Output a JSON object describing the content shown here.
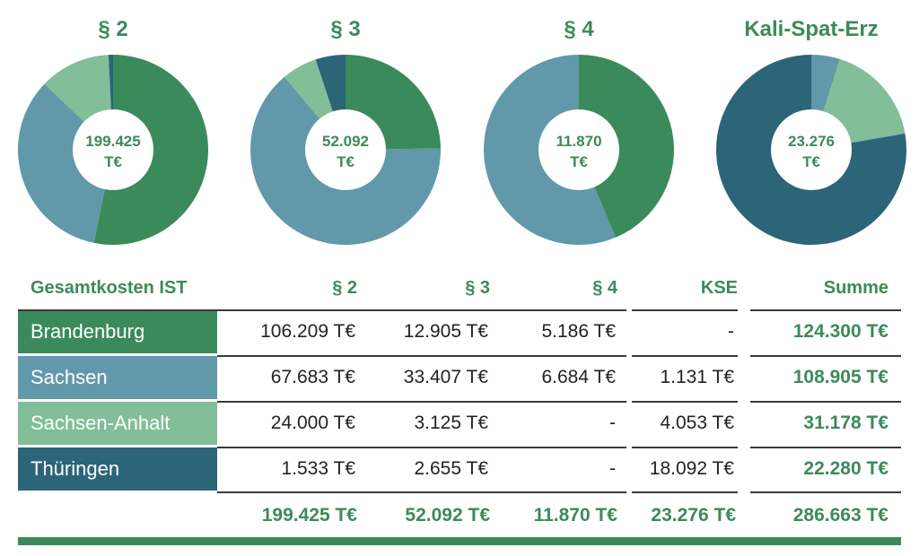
{
  "chart_data": [
    {
      "type": "pie",
      "title": "§ 2",
      "center_label": [
        "199.425",
        "T€"
      ],
      "series": [
        {
          "name": "Brandenburg",
          "value": 106209,
          "color": "#3b8a5c"
        },
        {
          "name": "Sachsen",
          "value": 67683,
          "color": "#6199aa"
        },
        {
          "name": "Sachsen-Anhalt",
          "value": 24000,
          "color": "#82be98"
        },
        {
          "name": "Thüringen",
          "value": 1533,
          "color": "#2c6478"
        }
      ]
    },
    {
      "type": "pie",
      "title": "§ 3",
      "center_label": [
        "52.092",
        "T€"
      ],
      "series": [
        {
          "name": "Brandenburg",
          "value": 12905,
          "color": "#3b8a5c"
        },
        {
          "name": "Sachsen",
          "value": 33407,
          "color": "#6199aa"
        },
        {
          "name": "Sachsen-Anhalt",
          "value": 3125,
          "color": "#82be98"
        },
        {
          "name": "Thüringen",
          "value": 2655,
          "color": "#2c6478"
        }
      ]
    },
    {
      "type": "pie",
      "title": "§ 4",
      "center_label": [
        "11.870",
        "T€"
      ],
      "series": [
        {
          "name": "Brandenburg",
          "value": 5186,
          "color": "#3b8a5c"
        },
        {
          "name": "Sachsen",
          "value": 6684,
          "color": "#6199aa"
        }
      ]
    },
    {
      "type": "pie",
      "title": "Kali-Spat-Erz",
      "center_label": [
        "23.276",
        "T€"
      ],
      "series": [
        {
          "name": "Sachsen",
          "value": 1131,
          "color": "#6199aa"
        },
        {
          "name": "Sachsen-Anhalt",
          "value": 4053,
          "color": "#82be98"
        },
        {
          "name": "Thüringen",
          "value": 18092,
          "color": "#2c6478"
        }
      ]
    }
  ],
  "table": {
    "corner": "Gesamtkosten IST",
    "headers": [
      "§ 2",
      "§ 3",
      "§ 4",
      "KSE",
      "Summe"
    ],
    "rows": [
      {
        "label": "Brandenburg",
        "color": "#3b8a5c",
        "cells": [
          "106.209 T€",
          "12.905 T€",
          "5.186 T€",
          "-"
        ],
        "sum": "124.300 T€"
      },
      {
        "label": "Sachsen",
        "color": "#6199aa",
        "cells": [
          "67.683 T€",
          "33.407 T€",
          "6.684 T€",
          "1.131 T€"
        ],
        "sum": "108.905 T€"
      },
      {
        "label": "Sachsen-Anhalt",
        "color": "#82be98",
        "cells": [
          "24.000 T€",
          "3.125 T€",
          "-",
          "4.053 T€"
        ],
        "sum": "31.178 T€"
      },
      {
        "label": "Thüringen",
        "color": "#2c6478",
        "cells": [
          "1.533 T€",
          "2.655 T€",
          "-",
          "18.092 T€"
        ],
        "sum": "22.280 T€"
      }
    ],
    "totals": [
      "199.425 T€",
      "52.092 T€",
      "11.870 T€",
      "23.276 T€",
      "286.663 T€"
    ]
  },
  "colors": {
    "accent": "#3c8a5a"
  }
}
